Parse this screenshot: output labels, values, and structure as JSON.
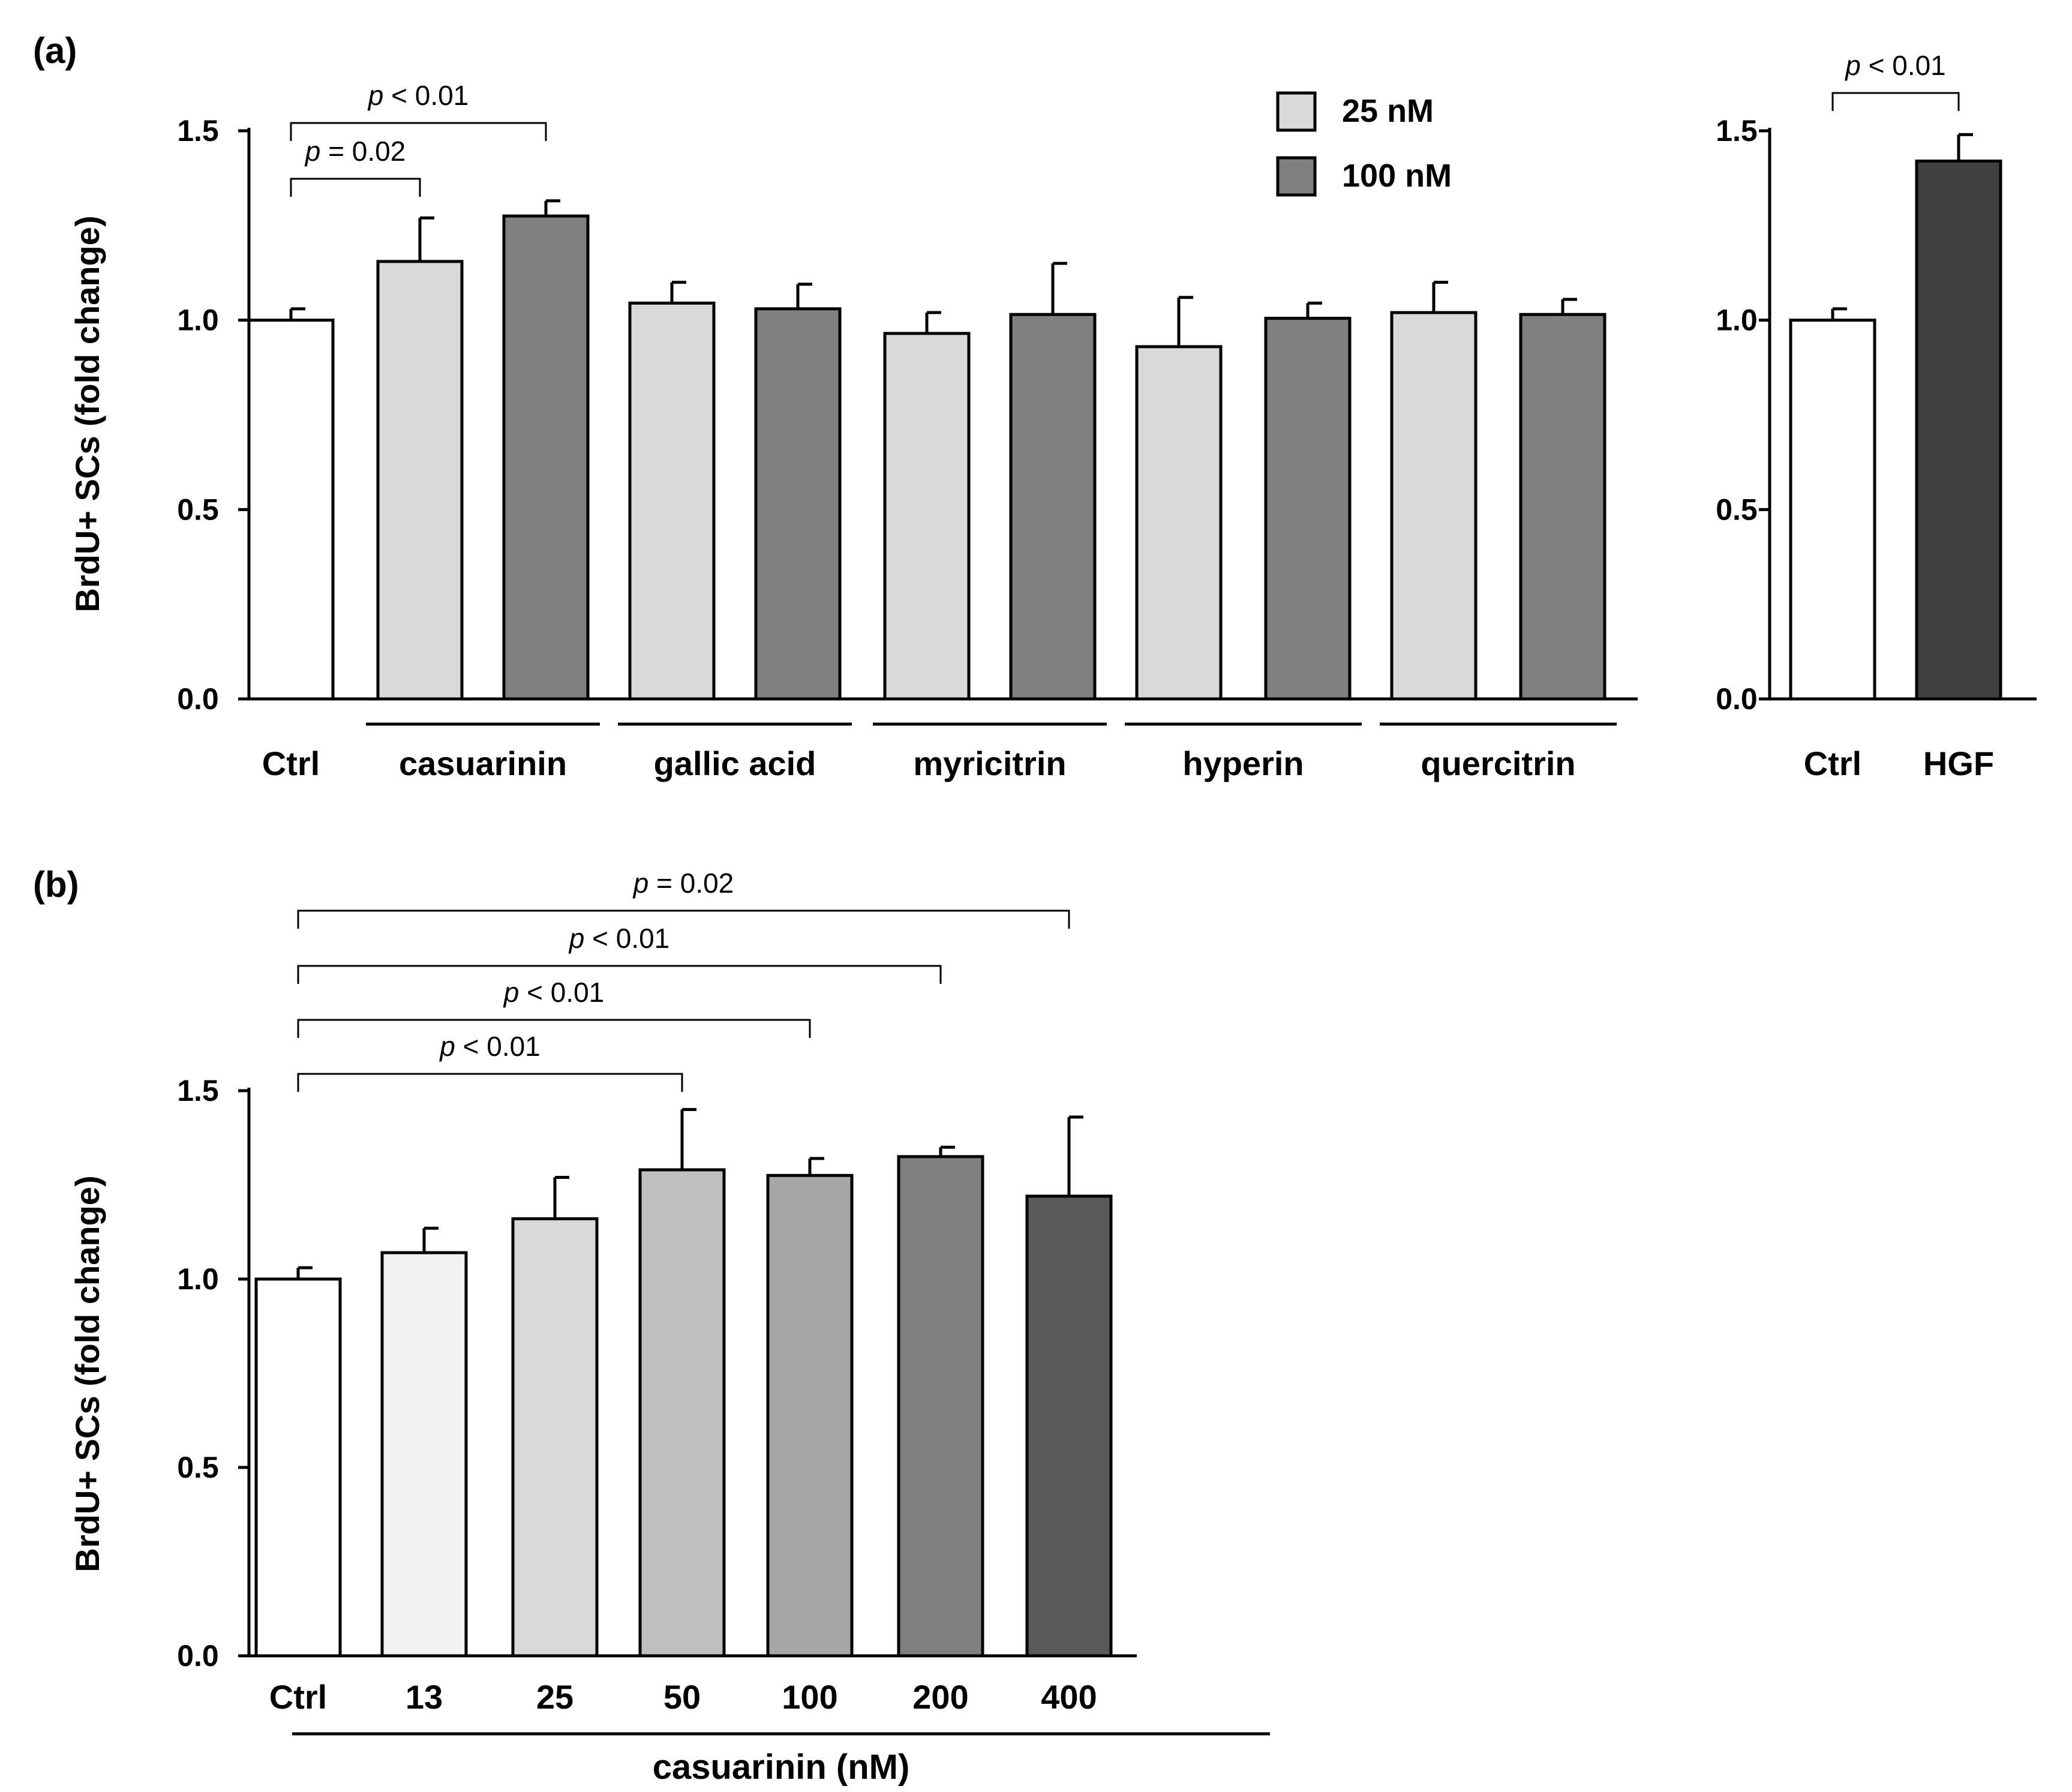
{
  "chart_data": [
    {
      "id": "a_main",
      "type": "bar",
      "panel_label": "(a)",
      "ylabel": "BrdU+ SCs (fold change)",
      "ylim": [
        0,
        1.5
      ],
      "yticks": [
        "0.0",
        "0.5",
        "1.0",
        "1.5"
      ],
      "legend": [
        {
          "label": "25 nM",
          "color": "#d9d9d9"
        },
        {
          "label": "100 nM",
          "color": "#808080"
        }
      ],
      "groups": [
        "Ctrl",
        "casuarinin",
        "gallic acid",
        "myricitrin",
        "hyperin",
        "quercitrin"
      ],
      "bars": [
        {
          "group": "Ctrl",
          "series": "control",
          "value": 1.0,
          "error": 0.03,
          "color": "#ffffff"
        },
        {
          "group": "casuarinin",
          "series": "25 nM",
          "value": 1.155,
          "error": 0.115,
          "color": "#d9d9d9"
        },
        {
          "group": "casuarinin",
          "series": "100 nM",
          "value": 1.275,
          "error": 0.04,
          "color": "#808080"
        },
        {
          "group": "gallic acid",
          "series": "25 nM",
          "value": 1.045,
          "error": 0.055,
          "color": "#d9d9d9"
        },
        {
          "group": "gallic acid",
          "series": "100 nM",
          "value": 1.03,
          "error": 0.065,
          "color": "#808080"
        },
        {
          "group": "myricitrin",
          "series": "25 nM",
          "value": 0.965,
          "error": 0.055,
          "color": "#d9d9d9"
        },
        {
          "group": "myricitrin",
          "series": "100 nM",
          "value": 1.015,
          "error": 0.135,
          "color": "#808080"
        },
        {
          "group": "hyperin",
          "series": "25 nM",
          "value": 0.93,
          "error": 0.13,
          "color": "#d9d9d9"
        },
        {
          "group": "hyperin",
          "series": "100 nM",
          "value": 1.005,
          "error": 0.04,
          "color": "#808080"
        },
        {
          "group": "quercitrin",
          "series": "25 nM",
          "value": 1.02,
          "error": 0.08,
          "color": "#d9d9d9"
        },
        {
          "group": "quercitrin",
          "series": "100 nM",
          "value": 1.015,
          "error": 0.04,
          "color": "#808080"
        }
      ],
      "annotations": [
        {
          "text_italic": "p",
          "text_rest": " < 0.01",
          "from_bar": 0,
          "to_bar": 2
        },
        {
          "text_italic": "p",
          "text_rest": " = 0.02",
          "from_bar": 0,
          "to_bar": 1
        }
      ]
    },
    {
      "id": "a_hgf",
      "type": "bar",
      "ylim": [
        0,
        1.5
      ],
      "yticks": [
        "0.0",
        "0.5",
        "1.0",
        "1.5"
      ],
      "categories": [
        "Ctrl",
        "HGF"
      ],
      "values": [
        1.0,
        1.42
      ],
      "errors": [
        0.03,
        0.07
      ],
      "colors": [
        "#ffffff",
        "#404040"
      ],
      "annotations": [
        {
          "text_italic": "p",
          "text_rest": " < 0.01",
          "from_bar": 0,
          "to_bar": 1
        }
      ]
    },
    {
      "id": "b",
      "type": "bar",
      "panel_label": "(b)",
      "ylabel": "BrdU+ SCs (fold change)",
      "xlabel": "casuarinin (nM)",
      "ylim": [
        0,
        1.5
      ],
      "yticks": [
        "0.0",
        "0.5",
        "1.0",
        "1.5"
      ],
      "categories": [
        "Ctrl",
        "13",
        "25",
        "50",
        "100",
        "200",
        "400"
      ],
      "values": [
        1.0,
        1.07,
        1.16,
        1.29,
        1.275,
        1.325,
        1.22
      ],
      "errors": [
        0.03,
        0.065,
        0.11,
        0.16,
        0.045,
        0.025,
        0.21
      ],
      "colors": [
        "#ffffff",
        "#f2f2f2",
        "#d9d9d9",
        "#bfbfbf",
        "#a6a6a6",
        "#808080",
        "#595959"
      ],
      "annotations": [
        {
          "text_italic": "p",
          "text_rest": " = 0.02",
          "from_bar": 0,
          "to_bar": 6
        },
        {
          "text_italic": "p",
          "text_rest": " < 0.01",
          "from_bar": 0,
          "to_bar": 5
        },
        {
          "text_italic": "p",
          "text_rest": " < 0.01",
          "from_bar": 0,
          "to_bar": 4
        },
        {
          "text_italic": "p",
          "text_rest": " < 0.01",
          "from_bar": 0,
          "to_bar": 3
        }
      ]
    }
  ]
}
